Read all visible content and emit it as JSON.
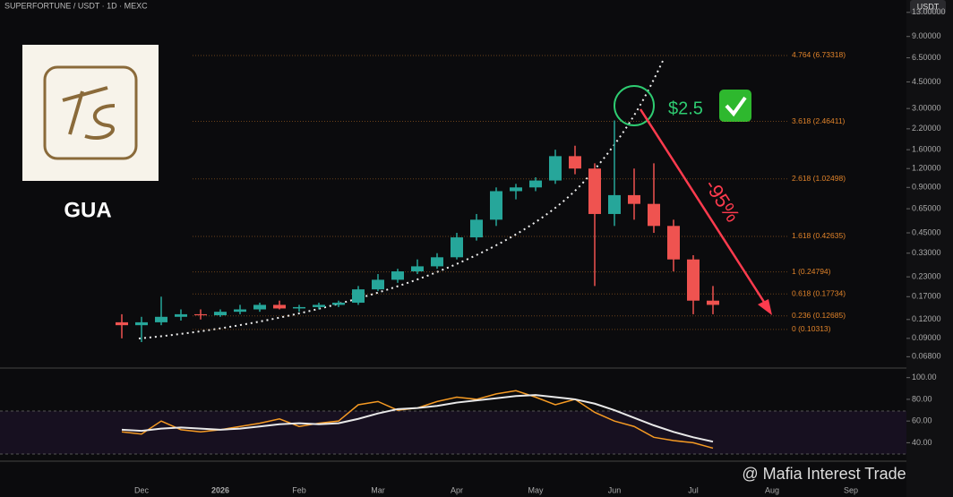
{
  "chart_data": [
    {
      "type": "candlestick",
      "title": "SUPERFORTUNE / USDT · 1D · MEXC",
      "currency": "USDT",
      "annotations": [
        "GUA",
        "$2.5",
        "-95%",
        "@ Mafia Interest Trade"
      ],
      "log_scale": true,
      "up_color": "#26a69a",
      "down_color": "#ef5350",
      "categories": [
        null,
        "Dec",
        null,
        null,
        null,
        "2026",
        null,
        null,
        null,
        "Feb",
        null,
        null,
        null,
        "Mar",
        null,
        null,
        null,
        "Apr",
        null,
        null,
        null,
        "May",
        null,
        null,
        null,
        "Jun",
        null,
        null,
        null,
        "Jul",
        null,
        null,
        null,
        "Aug",
        null,
        null,
        null,
        "Sep"
      ],
      "open": [
        0.115,
        0.11,
        0.115,
        0.125,
        0.13,
        0.128,
        0.135,
        0.14,
        0.15,
        0.142,
        0.145,
        0.15,
        0.155,
        0.19,
        0.22,
        0.25,
        0.27,
        0.31,
        0.42,
        0.55,
        0.85,
        0.9,
        1.0,
        1.45,
        1.2,
        0.6,
        0.8,
        0.7,
        0.5,
        0.3,
        0.16,
        null,
        null,
        null,
        null,
        null,
        null,
        null
      ],
      "high": [
        0.13,
        0.125,
        0.17,
        0.14,
        0.14,
        0.14,
        0.15,
        0.155,
        0.16,
        0.15,
        0.155,
        0.16,
        0.2,
        0.24,
        0.26,
        0.3,
        0.33,
        0.45,
        0.6,
        0.9,
        0.95,
        1.05,
        1.6,
        1.7,
        1.3,
        2.5,
        1.2,
        1.3,
        0.55,
        0.32,
        0.2,
        null,
        null,
        null,
        null,
        null,
        null,
        null
      ],
      "low": [
        0.09,
        0.085,
        0.11,
        0.118,
        0.12,
        0.125,
        0.13,
        0.135,
        0.14,
        0.135,
        0.14,
        0.145,
        0.15,
        0.185,
        0.21,
        0.24,
        0.26,
        0.3,
        0.4,
        0.5,
        0.75,
        0.85,
        0.95,
        1.1,
        0.2,
        0.5,
        0.55,
        0.45,
        0.25,
        0.13,
        0.13,
        null,
        null,
        null,
        null,
        null,
        null,
        null
      ],
      "close": [
        0.11,
        0.115,
        0.125,
        0.13,
        0.128,
        0.135,
        0.14,
        0.15,
        0.142,
        0.145,
        0.15,
        0.155,
        0.19,
        0.22,
        0.25,
        0.27,
        0.31,
        0.42,
        0.55,
        0.85,
        0.9,
        1.0,
        1.45,
        1.2,
        0.6,
        0.8,
        0.7,
        0.5,
        0.3,
        0.16,
        0.15,
        null,
        null,
        null,
        null,
        null,
        null,
        null
      ],
      "ylim": [
        0.058,
        15.7
      ],
      "yticks": [
        {
          "value": 0.068,
          "label": "0.06800"
        },
        {
          "value": 0.09,
          "label": "0.09000"
        },
        {
          "value": 0.12,
          "label": "0.12000"
        },
        {
          "value": 0.17,
          "label": "0.17000"
        },
        {
          "value": 0.23,
          "label": "0.23000"
        },
        {
          "value": 0.33,
          "label": "0.33000"
        },
        {
          "value": 0.45,
          "label": "0.45000"
        },
        {
          "value": 0.65,
          "label": "0.65000"
        },
        {
          "value": 0.9,
          "label": "0.90000"
        },
        {
          "value": 1.2,
          "label": "1.20000"
        },
        {
          "value": 1.6,
          "label": "1.60000"
        },
        {
          "value": 2.2,
          "label": "2.20000"
        },
        {
          "value": 3,
          "label": "3.00000"
        },
        {
          "value": 4.5,
          "label": "4.50000"
        },
        {
          "value": 6.5,
          "label": "6.50000"
        },
        {
          "value": 9,
          "label": "9.00000"
        },
        {
          "value": 13,
          "label": "13.00000"
        }
      ],
      "fib_levels": [
        {
          "value": 6.73318,
          "label": "4.764 (6.73318)"
        },
        {
          "value": 2.46411,
          "label": "3.618 (2.46411)"
        },
        {
          "value": 1.02498,
          "label": "2.618 (1.02498)"
        },
        {
          "value": 0.42635,
          "label": "1.618 (0.42635)"
        },
        {
          "value": 0.24794,
          "label": "1 (0.24794)"
        },
        {
          "value": 0.17734,
          "label": "0.618 (0.17734)"
        },
        {
          "value": 0.12685,
          "label": "0.236 (0.12685)"
        },
        {
          "value": 0.10313,
          "label": "0 (0.10313)"
        }
      ],
      "fib_color": "#e0832a"
    },
    {
      "type": "line",
      "series": [
        {
          "color": "#f59a23",
          "values": [
            50,
            48,
            60,
            52,
            50,
            52,
            55,
            58,
            62,
            55,
            58,
            60,
            75,
            78,
            70,
            72,
            78,
            82,
            80,
            85,
            88,
            82,
            75,
            80,
            68,
            60,
            55,
            45,
            42,
            40,
            35,
            null,
            null,
            null,
            null,
            null,
            null,
            null
          ]
        },
        {
          "color": "#e8e8e8",
          "values": [
            52,
            51,
            53,
            54,
            53,
            52,
            53,
            55,
            57,
            58,
            57,
            58,
            62,
            67,
            71,
            72,
            74,
            77,
            79,
            81,
            83,
            84,
            82,
            80,
            76,
            70,
            63,
            56,
            50,
            45,
            41,
            null,
            null,
            null,
            null,
            null,
            null,
            null
          ]
        }
      ],
      "ylim": [
        23,
        108
      ],
      "yticks": [
        {
          "value": 40,
          "label": "40.00"
        },
        {
          "value": 60,
          "label": "60.00"
        },
        {
          "value": 80,
          "label": "80.00"
        },
        {
          "value": 100,
          "label": "100.00"
        }
      ]
    }
  ]
}
